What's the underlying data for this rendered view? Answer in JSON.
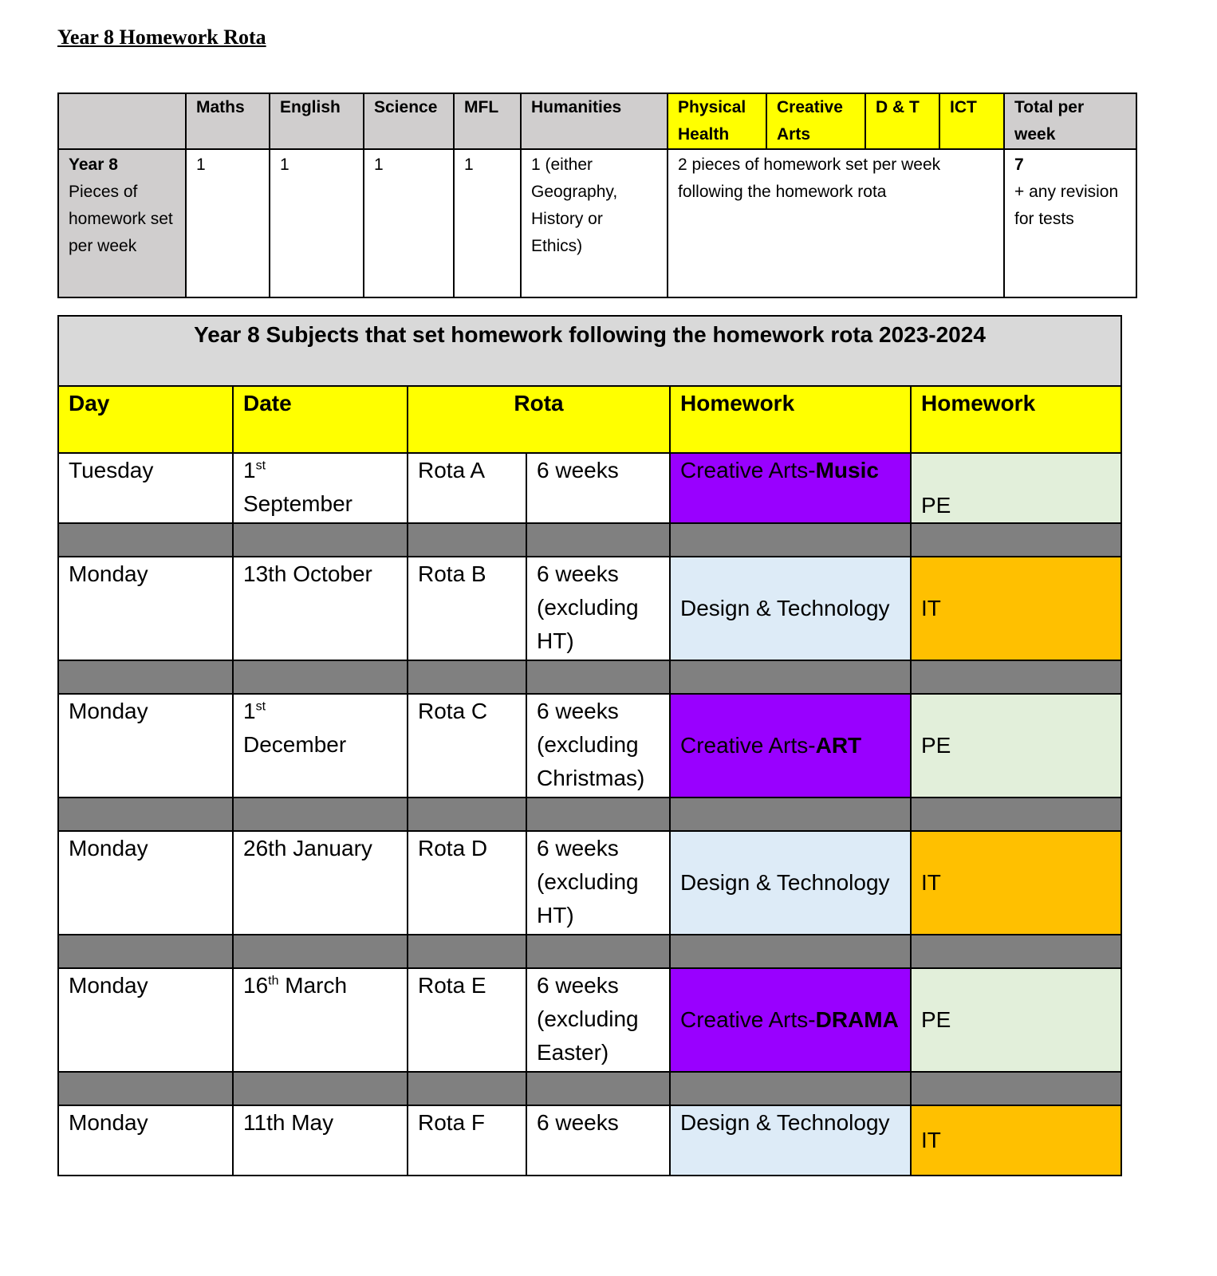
{
  "title": "Year 8 Homework Rota",
  "summary": {
    "headers": [
      "",
      "Maths",
      "English",
      "Science",
      "MFL",
      "Humanities",
      "Physical Health",
      "Creative Arts",
      "D & T",
      "ICT",
      "Total per week"
    ],
    "row_label_bold": "Year 8",
    "row_label": "Pieces of homework set per week",
    "values": [
      "1",
      "1",
      "1",
      "1",
      "1 (either Geography, History or Ethics)"
    ],
    "rota_note": "2 pieces of homework set per week following the homework rota",
    "total_bold": "7",
    "total_note": "+ any revision for tests",
    "highlight_color": "#ffff00"
  },
  "rota": {
    "title": "Year 8 Subjects that set homework following the homework rota 2023-2024",
    "headers": {
      "day": "Day",
      "date": "Date",
      "rota": "Rota",
      "hw1": "Homework",
      "hw2": "Homework"
    },
    "rows": [
      {
        "day": "Tuesday",
        "date_num": "1",
        "date_sup": "st",
        "date_rest": "September",
        "rota": "Rota A",
        "weeks": "6 weeks",
        "hw1": "Creative Arts-",
        "hw1_bold": "Music",
        "hw1_color": "#9900ff",
        "hw2": "PE",
        "hw2_color": "#e2efda"
      },
      {
        "day": "Monday",
        "date_num": "13th October",
        "date_sup": "",
        "date_rest": "",
        "rota": "Rota B",
        "weeks": "6 weeks (excluding HT)",
        "hw1": "Design & Technology",
        "hw1_bold": "",
        "hw1_color": "#ddebf7",
        "hw2": "IT",
        "hw2_color": "#ffc000"
      },
      {
        "day": "Monday",
        "date_num": "1",
        "date_sup": "st",
        "date_rest": "December",
        "rota": "Rota C",
        "weeks": "6 weeks (excluding Christmas)",
        "hw1": "Creative Arts-",
        "hw1_bold": "ART",
        "hw1_color": "#9900ff",
        "hw2": "PE",
        "hw2_color": "#e2efda"
      },
      {
        "day": "Monday",
        "date_num": "26th January",
        "date_sup": "",
        "date_rest": "",
        "rota": "Rota D",
        "weeks": "6 weeks (excluding HT)",
        "hw1": "Design & Technology",
        "hw1_bold": "",
        "hw1_color": "#ddebf7",
        "hw2": "IT",
        "hw2_color": "#ffc000"
      },
      {
        "day": "Monday",
        "date_num": "16",
        "date_sup": "th",
        "date_rest": " March",
        "rota": "Rota E",
        "weeks": "6 weeks (excluding Easter)",
        "hw1": "Creative Arts-",
        "hw1_bold": "DRAMA",
        "hw1_color": "#9900ff",
        "hw2": "PE",
        "hw2_color": "#e2efda"
      },
      {
        "day": "Monday",
        "date_num": "11th May",
        "date_sup": "",
        "date_rest": "",
        "rota": "Rota F",
        "weeks": "6 weeks",
        "hw1": "Design & Technology",
        "hw1_bold": "",
        "hw1_color": "#ddebf7",
        "hw2": "IT",
        "hw2_color": "#ffc000"
      }
    ],
    "separator_color": "#808080"
  }
}
